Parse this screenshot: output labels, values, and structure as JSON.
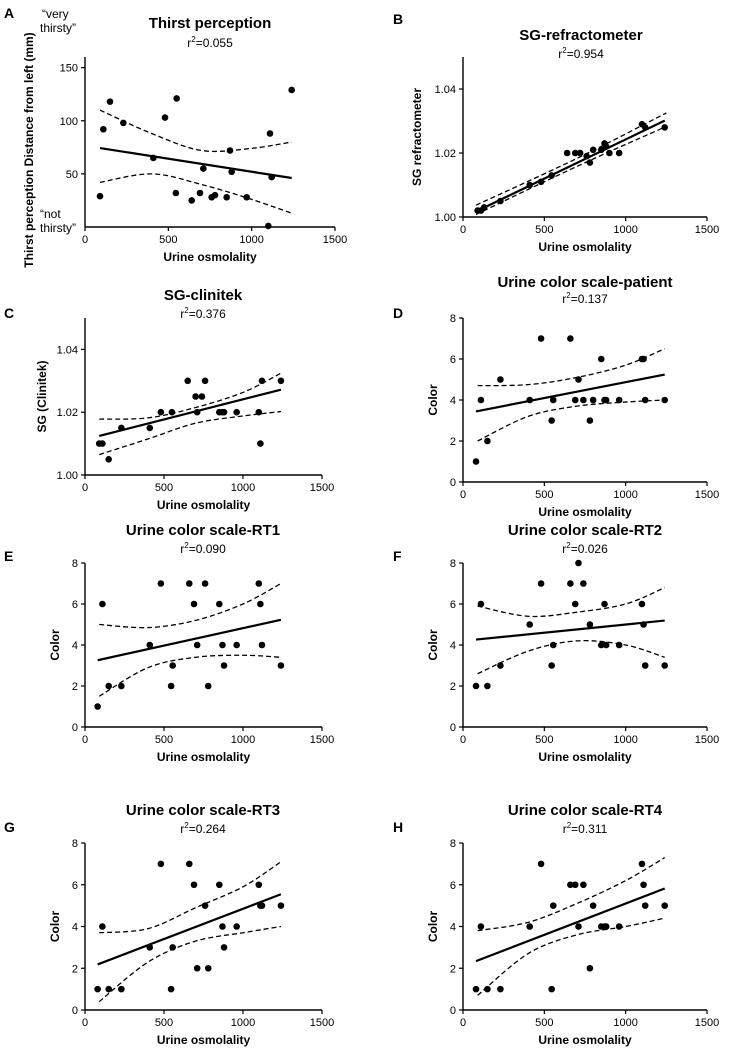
{
  "figure": {
    "colors": {
      "ink": "#000000",
      "background": "#ffffff"
    },
    "panels_count": 8
  },
  "chart_data": [
    {
      "label": "A",
      "type": "scatter",
      "title": "Thirst perception",
      "r2_prefix": "r",
      "r2_exp": "2",
      "r2_value": "=0.055",
      "xlabel": "Urine osmolality",
      "ylabel": "Thirst perception Distance from left (mm)",
      "annotations": {
        "top_line1": "“very",
        "top_line2": "thirsty”",
        "bottom_line1": "“not",
        "bottom_line2": "thirsty”"
      },
      "xlim": [
        0,
        1500
      ],
      "ylim": [
        0,
        160
      ],
      "xticks": [
        0,
        500,
        1000,
        1500
      ],
      "yticks": [
        50,
        100,
        150
      ],
      "xtick_labels": [
        "0",
        "500",
        "1000",
        "1500"
      ],
      "ytick_labels": [
        "50",
        "100",
        "150"
      ],
      "points": [
        [
          90,
          29
        ],
        [
          110,
          92
        ],
        [
          150,
          118
        ],
        [
          230,
          98
        ],
        [
          410,
          65
        ],
        [
          480,
          103
        ],
        [
          545,
          32
        ],
        [
          550,
          121
        ],
        [
          640,
          25
        ],
        [
          690,
          32
        ],
        [
          710,
          55
        ],
        [
          760,
          28
        ],
        [
          780,
          30
        ],
        [
          850,
          28
        ],
        [
          870,
          72
        ],
        [
          880,
          52
        ],
        [
          970,
          28
        ],
        [
          1100,
          1
        ],
        [
          1110,
          88
        ],
        [
          1120,
          47
        ],
        [
          1240,
          129
        ]
      ],
      "fit": [
        76.5,
        -0.0245
      ],
      "ci_upper": [
        [
          90,
          110
        ],
        [
          400,
          88
        ],
        [
          700,
          72
        ],
        [
          1000,
          74
        ],
        [
          1240,
          80
        ]
      ],
      "ci_lower": [
        [
          90,
          42
        ],
        [
          400,
          50
        ],
        [
          700,
          40
        ],
        [
          1000,
          26
        ],
        [
          1240,
          13
        ]
      ]
    },
    {
      "label": "B",
      "type": "scatter",
      "title": "SG-refractometer",
      "r2_prefix": "r",
      "r2_exp": "2",
      "r2_value": "=0.954",
      "xlabel": "Urine osmolality",
      "ylabel": "SG refractometer",
      "xlim": [
        0,
        1500
      ],
      "ylim": [
        1.0,
        1.05
      ],
      "xticks": [
        0,
        500,
        1000,
        1500
      ],
      "yticks": [
        1.0,
        1.02,
        1.04
      ],
      "xtick_labels": [
        "0",
        "500",
        "1000",
        "1500"
      ],
      "ytick_labels": [
        "1.00",
        "1.02",
        "1.04"
      ],
      "points": [
        [
          90,
          1.002
        ],
        [
          110,
          1.002
        ],
        [
          130,
          1.003
        ],
        [
          230,
          1.005
        ],
        [
          410,
          1.01
        ],
        [
          480,
          1.011
        ],
        [
          545,
          1.013
        ],
        [
          640,
          1.02
        ],
        [
          690,
          1.02
        ],
        [
          720,
          1.02
        ],
        [
          760,
          1.019
        ],
        [
          780,
          1.017
        ],
        [
          800,
          1.021
        ],
        [
          850,
          1.021
        ],
        [
          870,
          1.023
        ],
        [
          880,
          1.022
        ],
        [
          900,
          1.02
        ],
        [
          960,
          1.02
        ],
        [
          1100,
          1.029
        ],
        [
          1120,
          1.028
        ],
        [
          1240,
          1.028
        ]
      ],
      "fit": [
        0.99975,
        2.45e-05
      ],
      "ci_upper": [
        [
          80,
          1.0037
        ],
        [
          700,
          1.0183
        ],
        [
          1250,
          1.0325
        ]
      ],
      "ci_lower": [
        [
          80,
          1.0008
        ],
        [
          700,
          1.0158
        ],
        [
          1250,
          1.0283
        ]
      ]
    },
    {
      "label": "C",
      "type": "scatter",
      "title": "SG-clinitek",
      "r2_prefix": "r",
      "r2_exp": "2",
      "r2_value": "=0.376",
      "xlabel": "Urine osmolality",
      "ylabel": "SG (Clinitek)",
      "xlim": [
        0,
        1500
      ],
      "ylim": [
        1.0,
        1.05
      ],
      "xticks": [
        0,
        500,
        1000,
        1500
      ],
      "yticks": [
        1.0,
        1.02,
        1.04
      ],
      "xtick_labels": [
        "0",
        "500",
        "1000",
        "1500"
      ],
      "ytick_labels": [
        "1.00",
        "1.02",
        "1.04"
      ],
      "points": [
        [
          90,
          1.01
        ],
        [
          110,
          1.01
        ],
        [
          150,
          1.005
        ],
        [
          230,
          1.015
        ],
        [
          410,
          1.015
        ],
        [
          480,
          1.02
        ],
        [
          550,
          1.02
        ],
        [
          650,
          1.03
        ],
        [
          700,
          1.025
        ],
        [
          710,
          1.02
        ],
        [
          740,
          1.025
        ],
        [
          760,
          1.03
        ],
        [
          850,
          1.02
        ],
        [
          870,
          1.02
        ],
        [
          880,
          1.02
        ],
        [
          960,
          1.02
        ],
        [
          1100,
          1.02
        ],
        [
          1110,
          1.01
        ],
        [
          1120,
          1.03
        ],
        [
          1240,
          1.03
        ]
      ],
      "fit": [
        1.0113,
        1.28e-05
      ],
      "ci_upper": [
        [
          90,
          1.0178
        ],
        [
          400,
          1.0182
        ],
        [
          700,
          1.0215
        ],
        [
          1000,
          1.0263
        ],
        [
          1240,
          1.0324
        ]
      ],
      "ci_lower": [
        [
          90,
          1.0065
        ],
        [
          400,
          1.0115
        ],
        [
          700,
          1.0165
        ],
        [
          1000,
          1.0188
        ],
        [
          1240,
          1.0202
        ]
      ]
    },
    {
      "label": "D",
      "type": "scatter",
      "title": "Urine color scale-patient",
      "r2_prefix": "r",
      "r2_exp": "2",
      "r2_value": "=0.137",
      "xlabel": "Urine osmolality",
      "ylabel": "Color",
      "xlim": [
        0,
        1500
      ],
      "ylim": [
        0,
        8
      ],
      "xticks": [
        0,
        500,
        1000,
        1500
      ],
      "yticks": [
        0,
        2,
        4,
        6,
        8
      ],
      "xtick_labels": [
        "0",
        "500",
        "1000",
        "1500"
      ],
      "ytick_labels": [
        "0",
        "2",
        "4",
        "6",
        "8"
      ],
      "points": [
        [
          80,
          1
        ],
        [
          110,
          4
        ],
        [
          150,
          2
        ],
        [
          230,
          5
        ],
        [
          410,
          4
        ],
        [
          480,
          7
        ],
        [
          545,
          3
        ],
        [
          555,
          4
        ],
        [
          660,
          7
        ],
        [
          690,
          4
        ],
        [
          710,
          5
        ],
        [
          740,
          4
        ],
        [
          780,
          3
        ],
        [
          800,
          4
        ],
        [
          850,
          6
        ],
        [
          870,
          4
        ],
        [
          880,
          4
        ],
        [
          960,
          4
        ],
        [
          1100,
          6
        ],
        [
          1110,
          6
        ],
        [
          1120,
          4
        ],
        [
          1240,
          4
        ]
      ],
      "fit": [
        3.32,
        0.00155
      ],
      "ci_upper": [
        [
          90,
          4.7
        ],
        [
          400,
          4.75
        ],
        [
          700,
          5.1
        ],
        [
          1000,
          5.7
        ],
        [
          1240,
          6.5
        ]
      ],
      "ci_lower": [
        [
          90,
          2.0
        ],
        [
          400,
          3.2
        ],
        [
          700,
          3.7
        ],
        [
          1000,
          3.9
        ],
        [
          1240,
          4.0
        ]
      ]
    },
    {
      "label": "E",
      "type": "scatter",
      "title": "Urine color scale-RT1",
      "r2_prefix": "r",
      "r2_exp": "2",
      "r2_value": "=0.090",
      "xlabel": "Urine osmolality",
      "ylabel": "Color",
      "xlim": [
        0,
        1500
      ],
      "ylim": [
        0,
        8
      ],
      "xticks": [
        0,
        500,
        1000,
        1500
      ],
      "yticks": [
        0,
        2,
        4,
        6,
        8
      ],
      "xtick_labels": [
        "0",
        "500",
        "1000",
        "1500"
      ],
      "ytick_labels": [
        "0",
        "2",
        "4",
        "6",
        "8"
      ],
      "points": [
        [
          80,
          1
        ],
        [
          110,
          6
        ],
        [
          150,
          2
        ],
        [
          230,
          2
        ],
        [
          410,
          4
        ],
        [
          480,
          7
        ],
        [
          545,
          2
        ],
        [
          555,
          3
        ],
        [
          660,
          7
        ],
        [
          690,
          6
        ],
        [
          710,
          4
        ],
        [
          760,
          7
        ],
        [
          780,
          2
        ],
        [
          850,
          6
        ],
        [
          870,
          4
        ],
        [
          880,
          3
        ],
        [
          960,
          4
        ],
        [
          1100,
          7
        ],
        [
          1110,
          6
        ],
        [
          1120,
          4
        ],
        [
          1240,
          3
        ]
      ],
      "fit": [
        3.12,
        0.0017
      ],
      "ci_upper": [
        [
          90,
          5.0
        ],
        [
          400,
          4.85
        ],
        [
          700,
          5.2
        ],
        [
          1000,
          6.0
        ],
        [
          1240,
          7.0
        ]
      ],
      "ci_lower": [
        [
          90,
          1.5
        ],
        [
          400,
          2.9
        ],
        [
          700,
          3.4
        ],
        [
          1000,
          3.5
        ],
        [
          1240,
          3.4
        ]
      ]
    },
    {
      "label": "F",
      "type": "scatter",
      "title": "Urine color scale-RT2",
      "r2_prefix": "r",
      "r2_exp": "2",
      "r2_value": "=0.026",
      "xlabel": "Urine osmolality",
      "ylabel": "Color",
      "xlim": [
        0,
        1500
      ],
      "ylim": [
        0,
        8
      ],
      "xticks": [
        0,
        500,
        1000,
        1500
      ],
      "yticks": [
        0,
        2,
        4,
        6,
        8
      ],
      "xtick_labels": [
        "0",
        "500",
        "1000",
        "1500"
      ],
      "ytick_labels": [
        "0",
        "2",
        "4",
        "6",
        "8"
      ],
      "points": [
        [
          80,
          2
        ],
        [
          110,
          6
        ],
        [
          150,
          2
        ],
        [
          230,
          3
        ],
        [
          410,
          5
        ],
        [
          480,
          7
        ],
        [
          545,
          3
        ],
        [
          555,
          4
        ],
        [
          660,
          7
        ],
        [
          690,
          6
        ],
        [
          710,
          8
        ],
        [
          740,
          7
        ],
        [
          780,
          5
        ],
        [
          850,
          4
        ],
        [
          870,
          6
        ],
        [
          880,
          4
        ],
        [
          960,
          4
        ],
        [
          1100,
          6
        ],
        [
          1110,
          5
        ],
        [
          1120,
          3
        ],
        [
          1240,
          3
        ]
      ],
      "fit": [
        4.2,
        0.0008
      ],
      "ci_upper": [
        [
          90,
          5.9
        ],
        [
          400,
          5.4
        ],
        [
          700,
          5.6
        ],
        [
          1000,
          6.0
        ],
        [
          1240,
          6.8
        ]
      ],
      "ci_lower": [
        [
          90,
          2.6
        ],
        [
          400,
          3.7
        ],
        [
          700,
          4.2
        ],
        [
          1000,
          4.0
        ],
        [
          1240,
          3.4
        ]
      ]
    },
    {
      "label": "G",
      "type": "scatter",
      "title": "Urine color scale-RT3",
      "r2_prefix": "r",
      "r2_exp": "2",
      "r2_value": "=0.264",
      "xlabel": "Urine osmolality",
      "ylabel": "Color",
      "xlim": [
        0,
        1500
      ],
      "ylim": [
        0,
        8
      ],
      "xticks": [
        0,
        500,
        1000,
        1500
      ],
      "yticks": [
        0,
        2,
        4,
        6,
        8
      ],
      "xtick_labels": [
        "0",
        "500",
        "1000",
        "1500"
      ],
      "ytick_labels": [
        "0",
        "2",
        "4",
        "6",
        "8"
      ],
      "points": [
        [
          80,
          1
        ],
        [
          110,
          4
        ],
        [
          150,
          1
        ],
        [
          230,
          1
        ],
        [
          410,
          3
        ],
        [
          480,
          7
        ],
        [
          545,
          1
        ],
        [
          555,
          3
        ],
        [
          660,
          7
        ],
        [
          690,
          6
        ],
        [
          710,
          2
        ],
        [
          760,
          5
        ],
        [
          780,
          2
        ],
        [
          850,
          6
        ],
        [
          870,
          4
        ],
        [
          880,
          3
        ],
        [
          960,
          4
        ],
        [
          1100,
          6
        ],
        [
          1110,
          5
        ],
        [
          1120,
          5
        ],
        [
          1240,
          5
        ]
      ],
      "fit": [
        1.95,
        0.0029
      ],
      "ci_upper": [
        [
          90,
          3.7
        ],
        [
          400,
          3.9
        ],
        [
          700,
          4.9
        ],
        [
          1000,
          5.9
        ],
        [
          1240,
          7.1
        ]
      ],
      "ci_lower": [
        [
          90,
          0.4
        ],
        [
          400,
          2.3
        ],
        [
          700,
          3.3
        ],
        [
          1000,
          3.7
        ],
        [
          1240,
          4.0
        ]
      ]
    },
    {
      "label": "H",
      "type": "scatter",
      "title": "Urine color scale-RT4",
      "r2_prefix": "r",
      "r2_exp": "2",
      "r2_value": "=0.311",
      "xlabel": "Urine osmolality",
      "ylabel": "Color",
      "xlim": [
        0,
        1500
      ],
      "ylim": [
        0,
        8
      ],
      "xticks": [
        0,
        500,
        1000,
        1500
      ],
      "yticks": [
        0,
        2,
        4,
        6,
        8
      ],
      "xtick_labels": [
        "0",
        "500",
        "1000",
        "1500"
      ],
      "ytick_labels": [
        "0",
        "2",
        "4",
        "6",
        "8"
      ],
      "points": [
        [
          80,
          1
        ],
        [
          110,
          4
        ],
        [
          150,
          1
        ],
        [
          230,
          1
        ],
        [
          410,
          4
        ],
        [
          480,
          7
        ],
        [
          545,
          1
        ],
        [
          555,
          5
        ],
        [
          660,
          6
        ],
        [
          690,
          6
        ],
        [
          710,
          4
        ],
        [
          740,
          6
        ],
        [
          780,
          2
        ],
        [
          800,
          5
        ],
        [
          850,
          4
        ],
        [
          870,
          4
        ],
        [
          880,
          4
        ],
        [
          960,
          4
        ],
        [
          1100,
          7
        ],
        [
          1110,
          6
        ],
        [
          1120,
          5
        ],
        [
          1240,
          5
        ]
      ],
      "fit": [
        2.1,
        0.003
      ],
      "ci_upper": [
        [
          90,
          3.8
        ],
        [
          400,
          4.2
        ],
        [
          700,
          5.1
        ],
        [
          1000,
          6.2
        ],
        [
          1240,
          7.3
        ]
      ],
      "ci_lower": [
        [
          90,
          0.7
        ],
        [
          400,
          2.7
        ],
        [
          700,
          3.6
        ],
        [
          1000,
          4.0
        ],
        [
          1240,
          4.4
        ]
      ]
    }
  ]
}
